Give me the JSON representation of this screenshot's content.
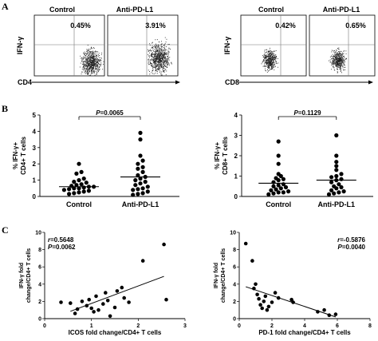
{
  "panels": {
    "a": "A",
    "b": "B",
    "c": "C"
  },
  "flow": {
    "left": {
      "titles": [
        "Control",
        "Anti-PD-L1"
      ],
      "percents": [
        "0.45%",
        "3.91%"
      ],
      "ylabel": "IFN-γ",
      "xlabel": "CD4"
    },
    "right": {
      "titles": [
        "Control",
        "Anti-PD-L1"
      ],
      "percents": [
        "0.42%",
        "0.65%"
      ],
      "ylabel": "IFN-γ",
      "xlabel": "CD8"
    }
  },
  "chart_data": [
    {
      "type": "scatter",
      "panel": "B-left",
      "ylabel_lines": [
        "% IFN-γ+",
        "CD4+ T cells"
      ],
      "ylim": [
        0,
        5
      ],
      "yticks": [
        0,
        1,
        2,
        3,
        4,
        5
      ],
      "categories": [
        "Control",
        "Anti-PD-L1"
      ],
      "pvalue": {
        "label": "P",
        "text": "=0.0065"
      },
      "series": [
        {
          "category": "Control",
          "mean": 0.6,
          "values": [
            2.0,
            1.5,
            1.4,
            1.1,
            1.0,
            0.9,
            0.85,
            0.75,
            0.7,
            0.65,
            0.6,
            0.6,
            0.55,
            0.5,
            0.5,
            0.45,
            0.4,
            0.35,
            0.3,
            0.25,
            0.2,
            0.15
          ]
        },
        {
          "category": "Anti-PD-L1",
          "mean": 1.2,
          "values": [
            3.9,
            3.5,
            2.5,
            2.2,
            2.0,
            1.8,
            1.7,
            1.5,
            1.3,
            1.2,
            1.1,
            1.0,
            0.9,
            0.8,
            0.7,
            0.6,
            0.5,
            0.45,
            0.4,
            0.3,
            0.2,
            0.15,
            0.1
          ]
        }
      ]
    },
    {
      "type": "scatter",
      "panel": "B-right",
      "ylabel_lines": [
        "% IFN-γ+",
        "CD8+ T cells"
      ],
      "ylim": [
        0,
        4
      ],
      "yticks": [
        0,
        1,
        2,
        3,
        4
      ],
      "categories": [
        "Control",
        "Anti-PD-L1"
      ],
      "pvalue": {
        "label": "P",
        "text": "=0.1129"
      },
      "series": [
        {
          "category": "Control",
          "mean": 0.65,
          "values": [
            2.7,
            2.0,
            1.6,
            1.1,
            1.0,
            0.9,
            0.85,
            0.8,
            0.7,
            0.6,
            0.55,
            0.5,
            0.45,
            0.4,
            0.35,
            0.3,
            0.25,
            0.2,
            0.2,
            0.15,
            0.1
          ]
        },
        {
          "category": "Anti-PD-L1",
          "mean": 0.8,
          "values": [
            3.0,
            2.0,
            1.7,
            1.5,
            1.3,
            1.1,
            1.0,
            0.95,
            0.85,
            0.8,
            0.7,
            0.6,
            0.5,
            0.45,
            0.4,
            0.3,
            0.25,
            0.2,
            0.15,
            0.1
          ]
        }
      ]
    },
    {
      "type": "scatter",
      "panel": "C-left",
      "xlabel": "ICOS fold change/CD4+ T cells",
      "ylabel_lines": [
        "IFN-γ fold",
        "change/CD4+ T cells"
      ],
      "xlim": [
        0,
        3
      ],
      "ylim": [
        0,
        10
      ],
      "xticks": [
        0,
        1,
        2,
        3
      ],
      "yticks": [
        0,
        2,
        4,
        6,
        8,
        10
      ],
      "stats": {
        "r_label": "r",
        "r_text": "=0.5648",
        "p_label": "P",
        "p_text": "=0.0062"
      },
      "trend": {
        "x": [
          0.55,
          2.55
        ],
        "y": [
          0.85,
          4.9
        ]
      },
      "points": [
        {
          "x": 0.35,
          "y": 1.9
        },
        {
          "x": 0.55,
          "y": 1.8
        },
        {
          "x": 0.65,
          "y": 0.6
        },
        {
          "x": 0.7,
          "y": 1.1
        },
        {
          "x": 0.8,
          "y": 2.0
        },
        {
          "x": 0.9,
          "y": 1.5
        },
        {
          "x": 0.95,
          "y": 2.2
        },
        {
          "x": 1.0,
          "y": 1.2
        },
        {
          "x": 1.05,
          "y": 0.8
        },
        {
          "x": 1.1,
          "y": 2.6
        },
        {
          "x": 1.15,
          "y": 1.0
        },
        {
          "x": 1.25,
          "y": 1.7
        },
        {
          "x": 1.3,
          "y": 3.0
        },
        {
          "x": 1.35,
          "y": 2.1
        },
        {
          "x": 1.4,
          "y": 0.3
        },
        {
          "x": 1.5,
          "y": 1.3
        },
        {
          "x": 1.55,
          "y": 3.2
        },
        {
          "x": 1.65,
          "y": 3.6
        },
        {
          "x": 1.7,
          "y": 2.4
        },
        {
          "x": 1.8,
          "y": 1.9
        },
        {
          "x": 2.1,
          "y": 6.7
        },
        {
          "x": 2.55,
          "y": 8.6
        },
        {
          "x": 2.6,
          "y": 2.2
        }
      ]
    },
    {
      "type": "scatter",
      "panel": "C-right",
      "xlabel": "PD-1 fold change/CD4+ T cells",
      "ylabel_lines": [
        "IFN-γ fold",
        "change/CD4+ T cells"
      ],
      "xlim": [
        0,
        8
      ],
      "ylim": [
        0,
        10
      ],
      "xticks": [
        0,
        2,
        4,
        6,
        8
      ],
      "yticks": [
        0,
        2,
        4,
        6,
        8,
        10
      ],
      "stats": {
        "r_label": "r",
        "r_text": "=-0.5876",
        "p_label": "P",
        "p_text": "=0.0040"
      },
      "trend": {
        "x": [
          0.4,
          5.9
        ],
        "y": [
          3.7,
          0.2
        ]
      },
      "points": [
        {
          "x": 0.4,
          "y": 8.7
        },
        {
          "x": 0.8,
          "y": 6.7
        },
        {
          "x": 0.9,
          "y": 3.5
        },
        {
          "x": 1.0,
          "y": 4.0
        },
        {
          "x": 1.1,
          "y": 2.8
        },
        {
          "x": 1.2,
          "y": 2.3
        },
        {
          "x": 1.3,
          "y": 1.6
        },
        {
          "x": 1.4,
          "y": 1.2
        },
        {
          "x": 1.5,
          "y": 2.0
        },
        {
          "x": 1.6,
          "y": 2.6
        },
        {
          "x": 1.7,
          "y": 1.0
        },
        {
          "x": 1.8,
          "y": 1.4
        },
        {
          "x": 2.0,
          "y": 1.9
        },
        {
          "x": 2.2,
          "y": 3.0
        },
        {
          "x": 2.4,
          "y": 2.4
        },
        {
          "x": 3.2,
          "y": 2.2
        },
        {
          "x": 3.3,
          "y": 1.9
        },
        {
          "x": 4.8,
          "y": 0.8
        },
        {
          "x": 5.2,
          "y": 1.0
        },
        {
          "x": 5.5,
          "y": 0.4
        },
        {
          "x": 5.9,
          "y": 0.5
        }
      ]
    }
  ]
}
